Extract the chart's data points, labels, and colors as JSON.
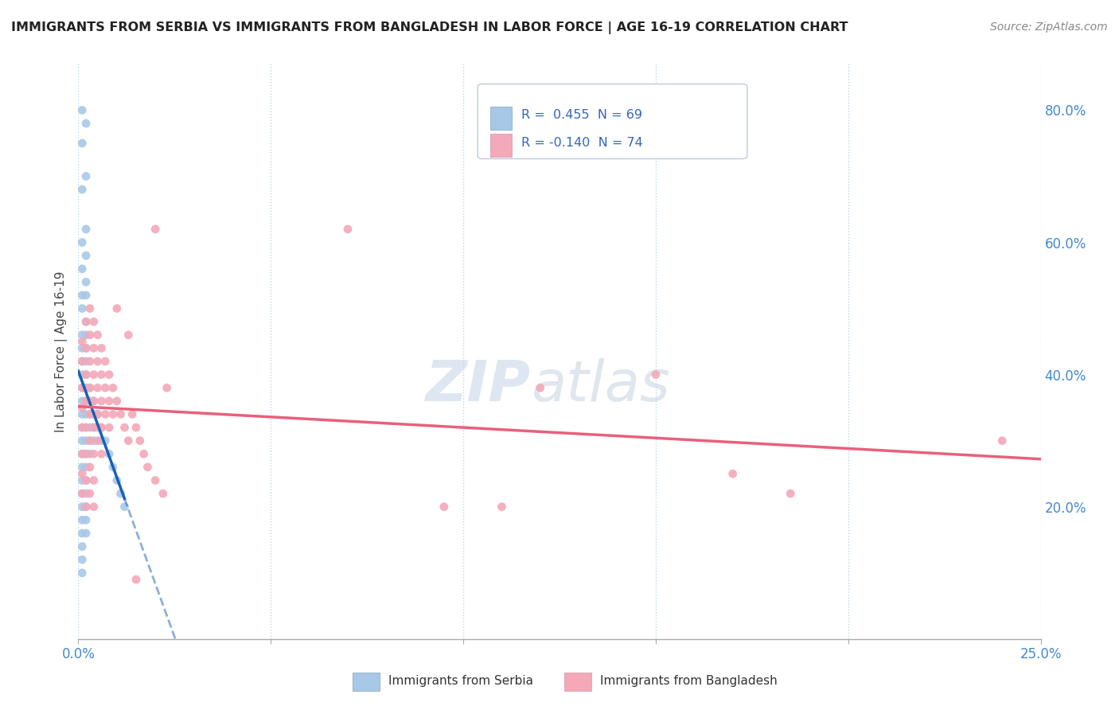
{
  "title": "IMMIGRANTS FROM SERBIA VS IMMIGRANTS FROM BANGLADESH IN LABOR FORCE | AGE 16-19 CORRELATION CHART",
  "source": "Source: ZipAtlas.com",
  "ylabel": "In Labor Force | Age 16-19",
  "xlim": [
    0.0,
    0.25
  ],
  "ylim": [
    0.0,
    0.87
  ],
  "yticks_right": [
    0.2,
    0.4,
    0.6,
    0.8
  ],
  "serbia_color": "#a8c8e8",
  "bangladesh_color": "#f4a8b8",
  "serbia_line_color": "#1a5fb4",
  "bangladesh_line_color": "#e8607a",
  "R_serbia": 0.455,
  "N_serbia": 69,
  "R_bangladesh": -0.14,
  "N_bangladesh": 74,
  "watermark_zip": "ZIP",
  "watermark_atlas": "atlas",
  "serbia_scatter": [
    [
      0.001,
      0.8
    ],
    [
      0.001,
      0.75
    ],
    [
      0.002,
      0.78
    ],
    [
      0.001,
      0.68
    ],
    [
      0.002,
      0.7
    ],
    [
      0.001,
      0.6
    ],
    [
      0.002,
      0.62
    ],
    [
      0.001,
      0.56
    ],
    [
      0.002,
      0.58
    ],
    [
      0.001,
      0.52
    ],
    [
      0.002,
      0.54
    ],
    [
      0.001,
      0.5
    ],
    [
      0.002,
      0.52
    ],
    [
      0.001,
      0.46
    ],
    [
      0.002,
      0.48
    ],
    [
      0.001,
      0.44
    ],
    [
      0.002,
      0.46
    ],
    [
      0.001,
      0.42
    ],
    [
      0.002,
      0.44
    ],
    [
      0.001,
      0.4
    ],
    [
      0.002,
      0.42
    ],
    [
      0.001,
      0.38
    ],
    [
      0.002,
      0.4
    ],
    [
      0.001,
      0.36
    ],
    [
      0.002,
      0.38
    ],
    [
      0.001,
      0.34
    ],
    [
      0.002,
      0.36
    ],
    [
      0.001,
      0.32
    ],
    [
      0.002,
      0.34
    ],
    [
      0.001,
      0.3
    ],
    [
      0.002,
      0.32
    ],
    [
      0.001,
      0.28
    ],
    [
      0.002,
      0.3
    ],
    [
      0.001,
      0.26
    ],
    [
      0.002,
      0.28
    ],
    [
      0.001,
      0.24
    ],
    [
      0.002,
      0.26
    ],
    [
      0.001,
      0.22
    ],
    [
      0.002,
      0.24
    ],
    [
      0.001,
      0.2
    ],
    [
      0.002,
      0.22
    ],
    [
      0.001,
      0.18
    ],
    [
      0.002,
      0.2
    ],
    [
      0.001,
      0.16
    ],
    [
      0.002,
      0.18
    ],
    [
      0.001,
      0.14
    ],
    [
      0.002,
      0.16
    ],
    [
      0.001,
      0.12
    ],
    [
      0.003,
      0.38
    ],
    [
      0.003,
      0.36
    ],
    [
      0.003,
      0.34
    ],
    [
      0.003,
      0.32
    ],
    [
      0.003,
      0.3
    ],
    [
      0.003,
      0.28
    ],
    [
      0.004,
      0.36
    ],
    [
      0.004,
      0.34
    ],
    [
      0.004,
      0.32
    ],
    [
      0.004,
      0.3
    ],
    [
      0.005,
      0.34
    ],
    [
      0.005,
      0.32
    ],
    [
      0.006,
      0.32
    ],
    [
      0.006,
      0.3
    ],
    [
      0.007,
      0.3
    ],
    [
      0.008,
      0.28
    ],
    [
      0.009,
      0.26
    ],
    [
      0.01,
      0.24
    ],
    [
      0.011,
      0.22
    ],
    [
      0.012,
      0.2
    ],
    [
      0.001,
      0.1
    ]
  ],
  "bangladesh_scatter": [
    [
      0.001,
      0.45
    ],
    [
      0.001,
      0.42
    ],
    [
      0.001,
      0.38
    ],
    [
      0.001,
      0.35
    ],
    [
      0.001,
      0.32
    ],
    [
      0.001,
      0.28
    ],
    [
      0.001,
      0.25
    ],
    [
      0.001,
      0.22
    ],
    [
      0.002,
      0.48
    ],
    [
      0.002,
      0.44
    ],
    [
      0.002,
      0.4
    ],
    [
      0.002,
      0.36
    ],
    [
      0.002,
      0.32
    ],
    [
      0.002,
      0.28
    ],
    [
      0.002,
      0.24
    ],
    [
      0.002,
      0.2
    ],
    [
      0.003,
      0.5
    ],
    [
      0.003,
      0.46
    ],
    [
      0.003,
      0.42
    ],
    [
      0.003,
      0.38
    ],
    [
      0.003,
      0.34
    ],
    [
      0.003,
      0.3
    ],
    [
      0.003,
      0.26
    ],
    [
      0.003,
      0.22
    ],
    [
      0.004,
      0.48
    ],
    [
      0.004,
      0.44
    ],
    [
      0.004,
      0.4
    ],
    [
      0.004,
      0.36
    ],
    [
      0.004,
      0.32
    ],
    [
      0.004,
      0.28
    ],
    [
      0.004,
      0.24
    ],
    [
      0.004,
      0.2
    ],
    [
      0.005,
      0.46
    ],
    [
      0.005,
      0.42
    ],
    [
      0.005,
      0.38
    ],
    [
      0.005,
      0.34
    ],
    [
      0.005,
      0.3
    ],
    [
      0.006,
      0.44
    ],
    [
      0.006,
      0.4
    ],
    [
      0.006,
      0.36
    ],
    [
      0.006,
      0.32
    ],
    [
      0.006,
      0.28
    ],
    [
      0.007,
      0.42
    ],
    [
      0.007,
      0.38
    ],
    [
      0.007,
      0.34
    ],
    [
      0.008,
      0.4
    ],
    [
      0.008,
      0.36
    ],
    [
      0.008,
      0.32
    ],
    [
      0.009,
      0.38
    ],
    [
      0.009,
      0.34
    ],
    [
      0.01,
      0.5
    ],
    [
      0.01,
      0.36
    ],
    [
      0.011,
      0.34
    ],
    [
      0.012,
      0.32
    ],
    [
      0.013,
      0.46
    ],
    [
      0.013,
      0.3
    ],
    [
      0.014,
      0.34
    ],
    [
      0.015,
      0.32
    ],
    [
      0.015,
      0.09
    ],
    [
      0.016,
      0.3
    ],
    [
      0.017,
      0.28
    ],
    [
      0.018,
      0.26
    ],
    [
      0.02,
      0.24
    ],
    [
      0.02,
      0.62
    ],
    [
      0.022,
      0.22
    ],
    [
      0.023,
      0.38
    ],
    [
      0.07,
      0.62
    ],
    [
      0.12,
      0.38
    ],
    [
      0.15,
      0.4
    ],
    [
      0.17,
      0.25
    ],
    [
      0.185,
      0.22
    ],
    [
      0.095,
      0.2
    ],
    [
      0.11,
      0.2
    ],
    [
      0.24,
      0.3
    ]
  ]
}
